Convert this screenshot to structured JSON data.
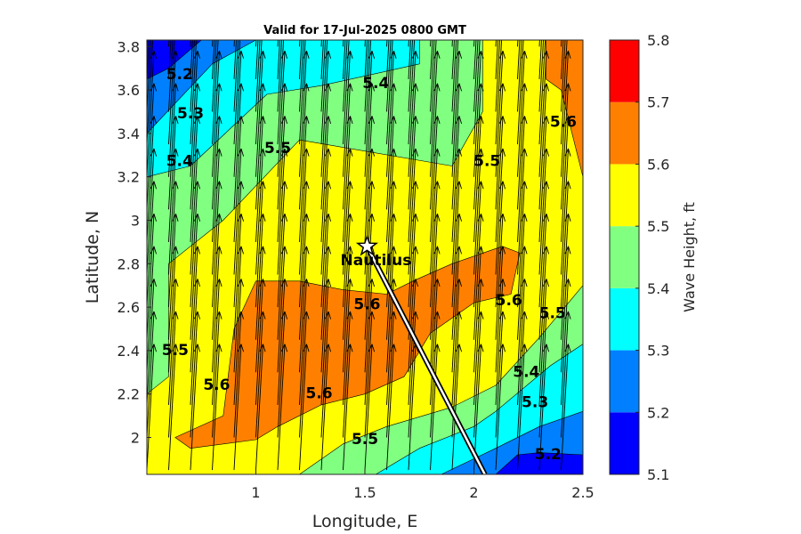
{
  "chart_data": {
    "type": "contour",
    "title": "Valid for 17-Jul-2025 0800 GMT",
    "xlabel": "Longitude, E",
    "ylabel": "Latitude, N",
    "xlim": [
      0.5,
      2.5
    ],
    "ylim": [
      1.83,
      3.83
    ],
    "xticks": [
      1,
      1.5,
      2,
      2.5
    ],
    "yticks": [
      2,
      2.2,
      2.4,
      2.6,
      2.8,
      3,
      3.2,
      3.4,
      3.6,
      3.8
    ],
    "colorbar": {
      "label": "Wave Height, ft",
      "ticks": [
        5.1,
        5.2,
        5.3,
        5.4,
        5.5,
        5.6,
        5.7,
        5.8
      ],
      "colors": [
        "#0000ff",
        "#0080ff",
        "#00ffff",
        "#80ff80",
        "#ffff00",
        "#ff8000",
        "#ff0000"
      ]
    },
    "grid": false,
    "contour_labels": [
      {
        "text": "5.2",
        "x": 0.65,
        "y": 3.67
      },
      {
        "text": "5.3",
        "x": 0.7,
        "y": 3.49
      },
      {
        "text": "5.4",
        "x": 0.65,
        "y": 3.27
      },
      {
        "text": "5.4",
        "x": 1.55,
        "y": 3.63
      },
      {
        "text": "5.5",
        "x": 1.1,
        "y": 3.33
      },
      {
        "text": "5.5",
        "x": 2.06,
        "y": 3.27
      },
      {
        "text": "5.6",
        "x": 2.41,
        "y": 3.45
      },
      {
        "text": "5.5",
        "x": 0.63,
        "y": 2.4
      },
      {
        "text": "5.6",
        "x": 0.82,
        "y": 2.24
      },
      {
        "text": "5.6",
        "x": 1.51,
        "y": 2.61
      },
      {
        "text": "5.6",
        "x": 1.29,
        "y": 2.2
      },
      {
        "text": "5.5",
        "x": 1.5,
        "y": 1.99
      },
      {
        "text": "5.6",
        "x": 2.16,
        "y": 2.63
      },
      {
        "text": "5.5",
        "x": 2.36,
        "y": 2.57
      },
      {
        "text": "5.4",
        "x": 2.24,
        "y": 2.3
      },
      {
        "text": "5.3",
        "x": 2.28,
        "y": 2.16
      },
      {
        "text": "5.2",
        "x": 2.34,
        "y": 1.92
      }
    ],
    "regions": [
      {
        "level": 5.5,
        "points": [
          [
            0.5,
            3.83
          ],
          [
            2.5,
            3.83
          ],
          [
            2.5,
            1.83
          ],
          [
            0.5,
            1.83
          ]
        ]
      },
      {
        "level": 5.4,
        "points": [
          [
            0.5,
            3.83
          ],
          [
            2.04,
            3.83
          ],
          [
            2.04,
            3.5
          ],
          [
            1.9,
            3.25
          ],
          [
            1.2,
            3.37
          ],
          [
            0.85,
            3.0
          ],
          [
            0.6,
            2.8
          ],
          [
            0.6,
            2.28
          ],
          [
            0.5,
            2.2
          ]
        ]
      },
      {
        "level": 5.3,
        "points": [
          [
            0.5,
            3.83
          ],
          [
            1.75,
            3.83
          ],
          [
            1.75,
            3.72
          ],
          [
            1.3,
            3.62
          ],
          [
            1.05,
            3.58
          ],
          [
            0.7,
            3.25
          ],
          [
            0.5,
            3.2
          ]
        ]
      },
      {
        "level": 5.2,
        "points": [
          [
            0.5,
            3.83
          ],
          [
            1.0,
            3.83
          ],
          [
            0.8,
            3.72
          ],
          [
            0.5,
            3.4
          ]
        ]
      },
      {
        "level": 5.1,
        "points": [
          [
            0.5,
            3.83
          ],
          [
            0.75,
            3.83
          ],
          [
            0.6,
            3.7
          ],
          [
            0.5,
            3.65
          ]
        ]
      },
      {
        "level": 5.6,
        "points": [
          [
            2.33,
            3.83
          ],
          [
            2.5,
            3.83
          ],
          [
            2.5,
            3.2
          ],
          [
            2.4,
            3.6
          ],
          [
            2.33,
            3.65
          ]
        ]
      },
      {
        "level": 5.6,
        "points": [
          [
            0.63,
            2.0
          ],
          [
            0.85,
            2.1
          ],
          [
            0.9,
            2.5
          ],
          [
            1.0,
            2.72
          ],
          [
            1.2,
            2.72
          ],
          [
            1.4,
            2.68
          ],
          [
            1.6,
            2.66
          ],
          [
            1.72,
            2.72
          ],
          [
            1.9,
            2.8
          ],
          [
            2.13,
            2.88
          ],
          [
            2.21,
            2.85
          ],
          [
            2.17,
            2.66
          ],
          [
            2.0,
            2.62
          ],
          [
            1.8,
            2.48
          ],
          [
            1.68,
            2.28
          ],
          [
            1.5,
            2.2
          ],
          [
            1.3,
            2.15
          ],
          [
            1.1,
            2.05
          ],
          [
            1.0,
            1.99
          ],
          [
            0.7,
            1.95
          ]
        ]
      },
      {
        "level": 5.4,
        "points": [
          [
            1.2,
            1.83
          ],
          [
            1.4,
            1.97
          ],
          [
            1.6,
            2.05
          ],
          [
            1.9,
            2.14
          ],
          [
            2.1,
            2.24
          ],
          [
            2.3,
            2.46
          ],
          [
            2.5,
            2.7
          ],
          [
            2.5,
            1.83
          ]
        ]
      },
      {
        "level": 5.3,
        "points": [
          [
            1.55,
            1.83
          ],
          [
            1.75,
            1.95
          ],
          [
            2.0,
            2.05
          ],
          [
            2.1,
            2.12
          ],
          [
            2.35,
            2.33
          ],
          [
            2.5,
            2.43
          ],
          [
            2.5,
            1.83
          ]
        ]
      },
      {
        "level": 5.2,
        "points": [
          [
            1.85,
            1.83
          ],
          [
            2.1,
            1.95
          ],
          [
            2.3,
            2.05
          ],
          [
            2.5,
            2.12
          ],
          [
            2.5,
            1.83
          ]
        ]
      },
      {
        "level": 5.1,
        "points": [
          [
            2.1,
            1.83
          ],
          [
            2.2,
            1.92
          ],
          [
            2.3,
            1.93
          ],
          [
            2.5,
            1.92
          ],
          [
            2.5,
            1.83
          ]
        ]
      }
    ],
    "track": [
      [
        1.51,
        2.88
      ],
      [
        2.05,
        1.83
      ]
    ],
    "marker": {
      "label": "Nautilus",
      "x": 1.51,
      "y": 2.88
    },
    "arrow_field": {
      "x_start": 0.5,
      "x_step": 0.1,
      "y_start": 1.85,
      "y_step": 0.15,
      "direction_deg": 80,
      "length": 0.095
    }
  }
}
